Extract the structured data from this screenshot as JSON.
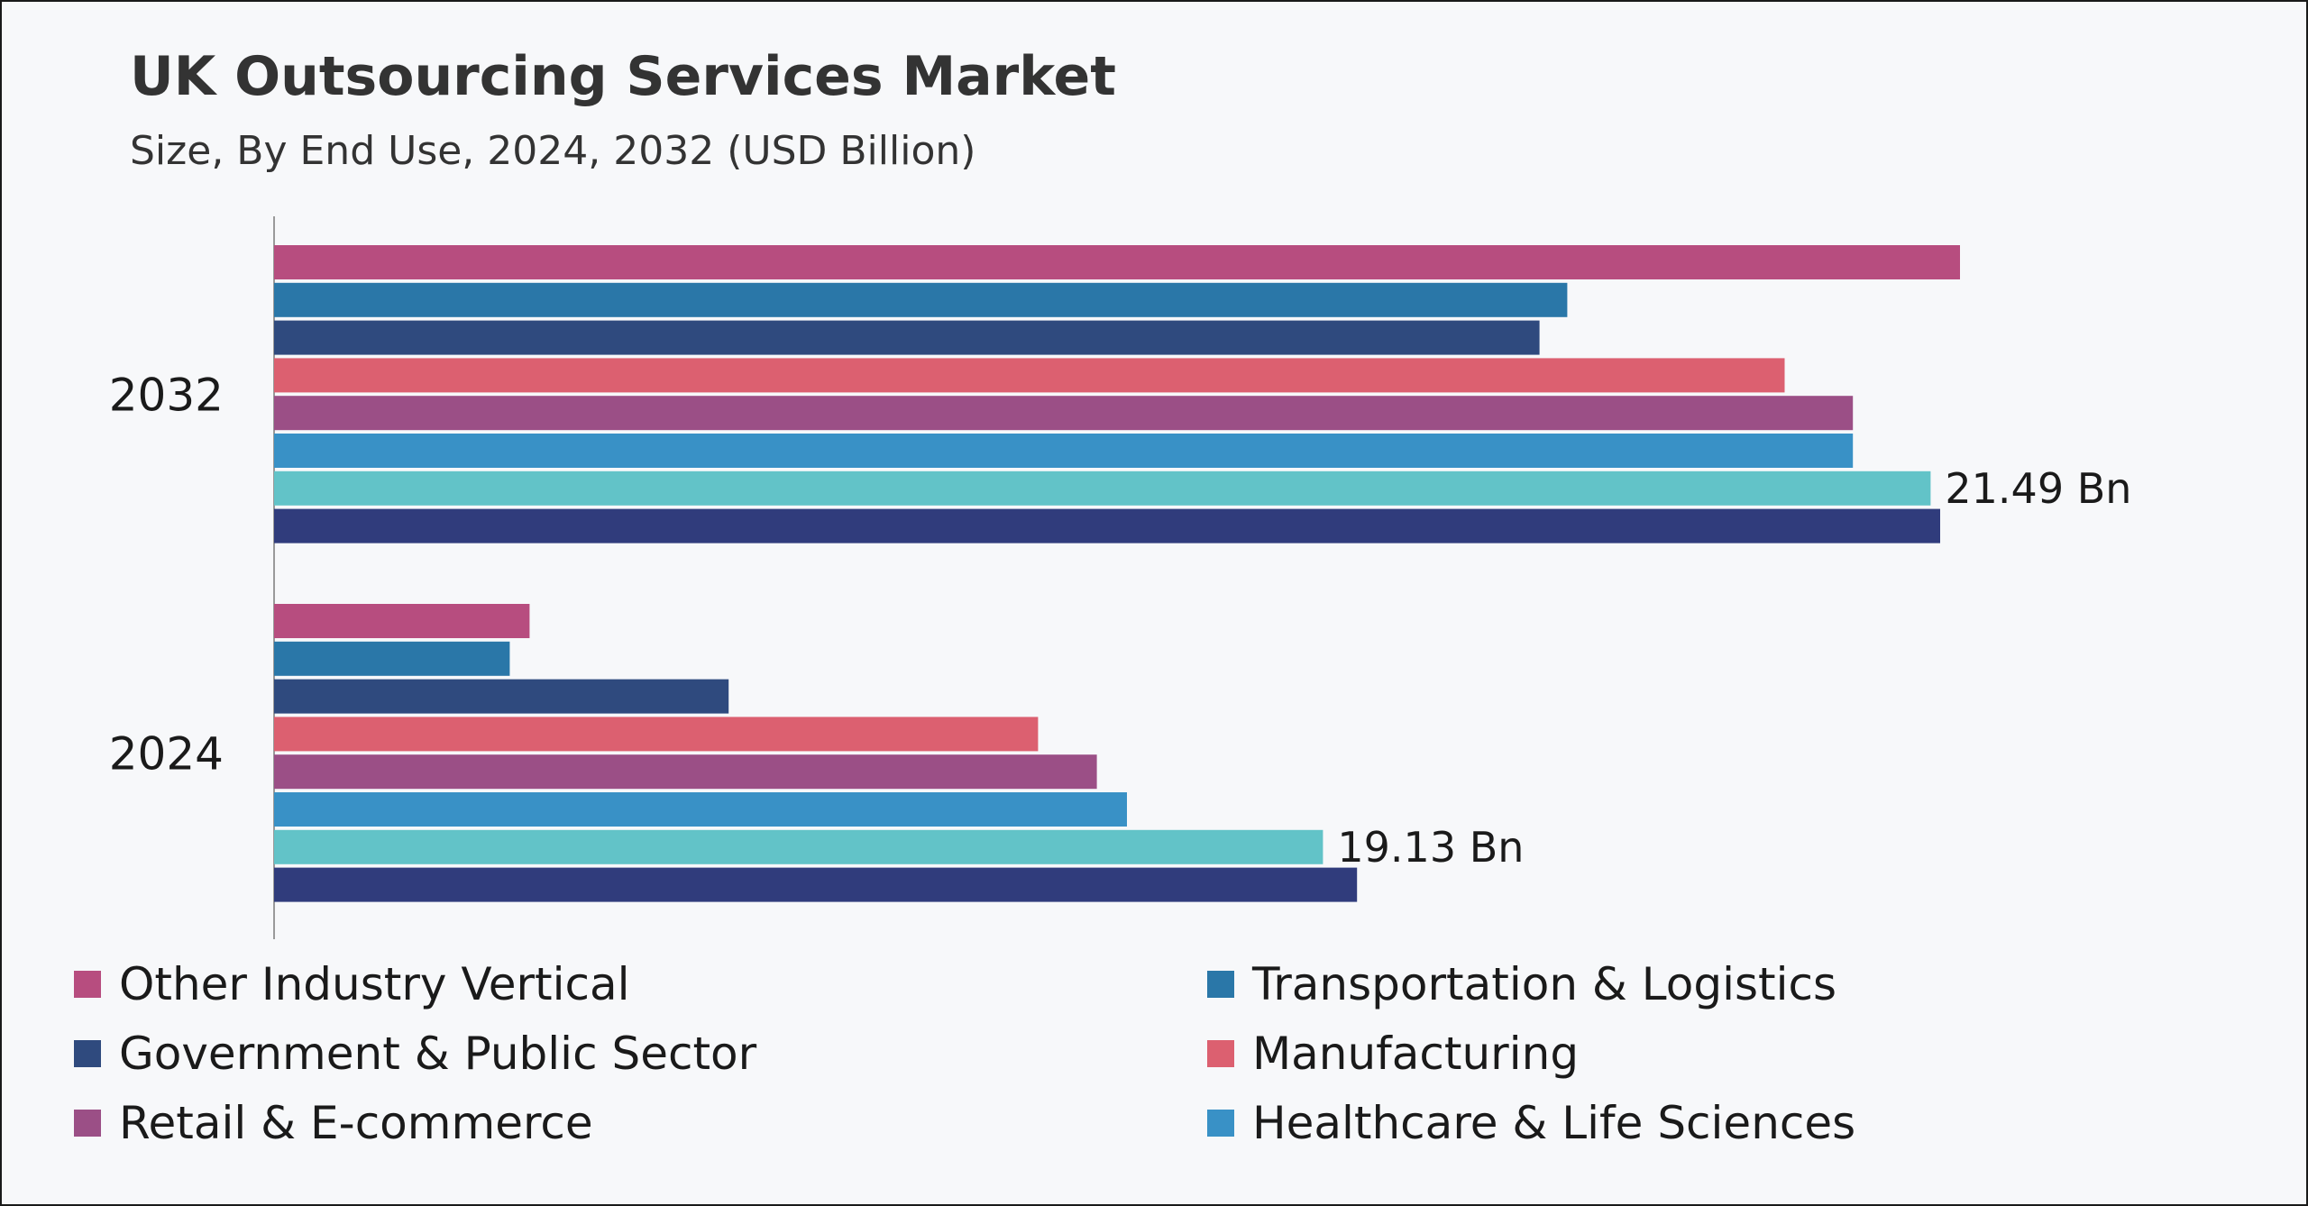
{
  "chart_data": {
    "type": "bar",
    "orientation": "horizontal",
    "title": "UK Outsourcing Services Market",
    "subtitle": "Size, By End Use, 2024, 2032 (USD Billion)",
    "categories": [
      "2032",
      "2024"
    ],
    "xlim": [
      0,
      25
    ],
    "grid": false,
    "legend_position": "bottom",
    "series": [
      {
        "name": "Other Industry Vertical",
        "color": "#b74d7f",
        "values": [
          21.25,
          3.22
        ]
      },
      {
        "name": "Transportation & Logistics",
        "color": "#2a77a8",
        "values": [
          16.3,
          2.97
        ]
      },
      {
        "name": "Government & Public Sector",
        "color": "#2f4a7e",
        "values": [
          15.95,
          5.73
        ]
      },
      {
        "name": "Manufacturing",
        "color": "#dc6070",
        "values": [
          19.04,
          9.63
        ]
      },
      {
        "name": "Retail & E-commerce",
        "color": "#9b4f86",
        "values": [
          19.9,
          10.37
        ]
      },
      {
        "name": "Healthcare & Life Sciences",
        "color": "#3991c6",
        "values": [
          19.9,
          10.75
        ]
      },
      {
        "name": "",
        "color": "#62c3c8",
        "values": [
          20.88,
          13.22
        ]
      },
      {
        "name": "",
        "color": "#303c7c",
        "values": [
          21.0,
          13.65
        ]
      }
    ],
    "annotations": [
      "21.49 Bn",
      "19.13 Bn"
    ]
  }
}
